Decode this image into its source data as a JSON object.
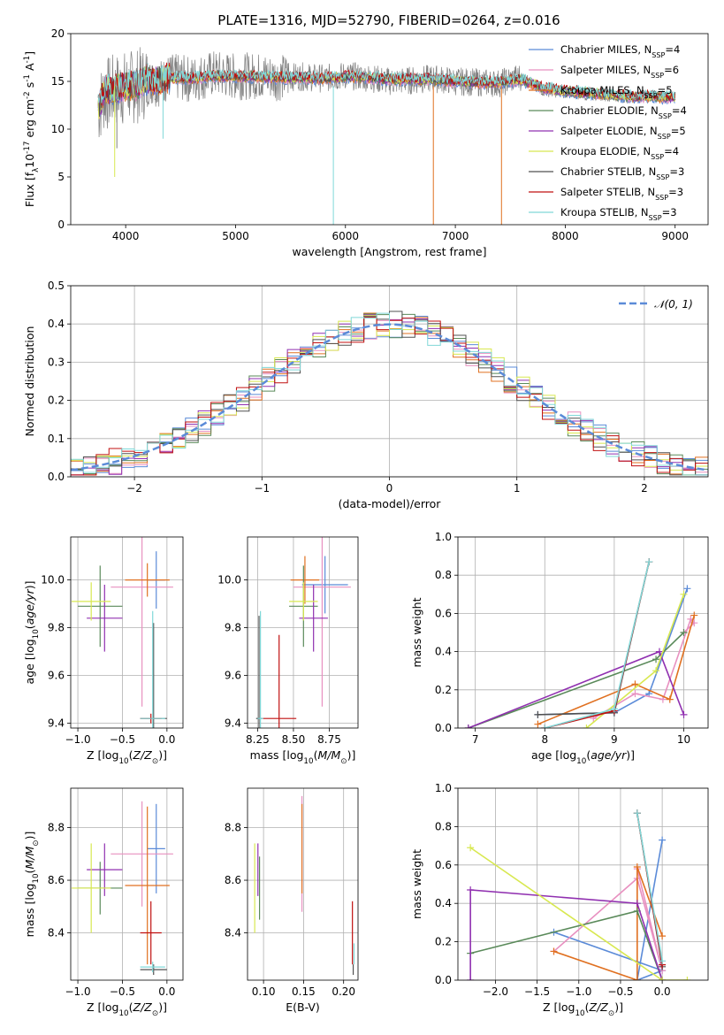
{
  "figure": {
    "title": "PLATE=1316, MJD=52790, FIBERID=0264, z=0.016"
  },
  "models": [
    {
      "name": "Chabrier MILES, N$_{SSP}$=4",
      "color": "#5b8bd8"
    },
    {
      "name": "Salpeter MILES, N$_{SSP}$=6",
      "color": "#e890c0"
    },
    {
      "name": "Kroupa MILES, N$_{SSP}$=5",
      "color": "#e07020"
    },
    {
      "name": "Chabrier ELODIE, N$_{SSP}$=4",
      "color": "#5a8a5a"
    },
    {
      "name": "Salpeter ELODIE, N$_{SSP}$=5",
      "color": "#9030b0"
    },
    {
      "name": "Kroupa ELODIE, N$_{SSP}$=4",
      "color": "#d8e850"
    },
    {
      "name": "Chabrier STELIB, N$_{SSP}$=3",
      "color": "#505050"
    },
    {
      "name": "Salpeter STELIB, N$_{SSP}$=3",
      "color": "#c01010"
    },
    {
      "name": "Kroupa STELIB, N$_{SSP}$=3",
      "color": "#80d8d8"
    }
  ],
  "chart_data": [
    {
      "id": "spectrum",
      "type": "line",
      "xlabel": "wavelength [Angstrom, rest frame]",
      "ylabel": "Flux [f$_\\lambda$10$^{-17}$ erg cm$^{-2}$ s$^{-1}$ A$^{-1}$]",
      "xlim": [
        3500,
        9300
      ],
      "ylim": [
        0,
        20
      ],
      "xticks": [
        4000,
        5000,
        6000,
        7000,
        8000,
        9000
      ],
      "yticks": [
        0,
        5,
        10,
        15,
        20
      ],
      "data_color": "#808080",
      "data": {
        "x": [
          3750,
          3800,
          3900,
          4000,
          4100,
          4200,
          4300,
          4400,
          4600,
          4800,
          5000,
          5200,
          5400,
          5600,
          5800,
          6000,
          6200,
          6400,
          6600,
          6800,
          7000,
          7200,
          7400,
          7600,
          7800,
          8000,
          8200,
          8400,
          8600,
          8800,
          9000
        ],
        "y": [
          12,
          13.5,
          14.0,
          14.3,
          14.5,
          15.0,
          14.8,
          15.5,
          15.2,
          15.8,
          15.5,
          15.6,
          15.4,
          15.5,
          15.3,
          15.6,
          15.4,
          15.0,
          15.1,
          15.3,
          15.0,
          14.9,
          14.8,
          15.5,
          14.0,
          13.8,
          13.6,
          13.5,
          13.3,
          13.4,
          13.3
        ]
      },
      "model_lines": {
        "x": [
          3750,
          3800,
          3900,
          4000,
          4100,
          4200,
          4300,
          4400,
          4600,
          4800,
          5000,
          5200,
          5400,
          5600,
          5800,
          6000,
          6200,
          6400,
          6600,
          6800,
          7000,
          7200,
          7400,
          7600,
          7800,
          8000,
          8200,
          8400,
          8600,
          8800,
          9000
        ],
        "y": [
          12,
          14.0,
          14.2,
          14.5,
          14.6,
          15.2,
          15.0,
          15.4,
          15.3,
          15.6,
          15.5,
          15.5,
          15.4,
          15.4,
          15.3,
          15.5,
          15.4,
          15.2,
          15.2,
          15.2,
          15.0,
          14.9,
          14.9,
          15.2,
          14.3,
          14.0,
          13.8,
          13.6,
          13.4,
          13.4,
          13.3
        ]
      }
    },
    {
      "id": "residuals",
      "type": "histogram",
      "xlabel": "(data-model)/error",
      "ylabel": "Normed distribution",
      "xlim": [
        -2.5,
        2.5
      ],
      "ylim": [
        0,
        0.5
      ],
      "xticks": [
        -2,
        -1,
        0,
        1,
        2
      ],
      "yticks": [
        0.0,
        0.1,
        0.2,
        0.3,
        0.4,
        0.5
      ],
      "bin_width": 0.1,
      "normal_curve": {
        "label": "$\\mathcal{N}(0, 1)$",
        "mu": 0,
        "sigma": 1,
        "color": "#5b8bd8"
      }
    },
    {
      "id": "Z-age",
      "type": "errorbar",
      "xlabel": "Z [log$_{10}$($Z/Z_\\odot$)]",
      "ylabel": "age  [log$_{10}$($age/yr$)]",
      "xlim": [
        -1.08,
        0.18
      ],
      "ylim": [
        9.38,
        10.18
      ],
      "xticks": [
        -1.0,
        -0.5,
        0.0
      ],
      "yticks": [
        9.4,
        9.6,
        9.8,
        10.0
      ],
      "points": [
        {
          "m": 0,
          "x": -0.12,
          "y": 10.0,
          "xe": 0.1,
          "ye": 0.12
        },
        {
          "m": 1,
          "x": -0.28,
          "y": 9.97,
          "xe": 0.35,
          "ye": 0.5
        },
        {
          "m": 2,
          "x": -0.22,
          "y": 10.0,
          "xe": 0.25,
          "ye": 0.07
        },
        {
          "m": 3,
          "x": -0.75,
          "y": 9.89,
          "xe": 0.25,
          "ye": 0.17
        },
        {
          "m": 4,
          "x": -0.7,
          "y": 9.84,
          "xe": 0.2,
          "ye": 0.14
        },
        {
          "m": 5,
          "x": -0.85,
          "y": 9.91,
          "xe": 0.22,
          "ye": 0.08
        },
        {
          "m": 6,
          "x": -0.15,
          "y": 9.42,
          "xe": 0.15,
          "ye": 0.4
        },
        {
          "m": 7,
          "x": -0.18,
          "y": 9.42,
          "xe": 0.12,
          "ye": 0.02
        },
        {
          "m": 8,
          "x": -0.16,
          "y": 9.42,
          "xe": 0.14,
          "ye": 0.45
        }
      ]
    },
    {
      "id": "mass-age",
      "type": "errorbar",
      "xlabel": "mass [log$_{10}$($M/M_\\odot$)]",
      "ylabel": "",
      "xlim": [
        8.18,
        8.95
      ],
      "ylim": [
        9.38,
        10.18
      ],
      "xticks": [
        8.25,
        8.5,
        8.75
      ],
      "yticks": [
        9.4,
        9.6,
        9.8,
        10.0
      ],
      "points": [
        {
          "m": 0,
          "x": 8.72,
          "y": 9.98,
          "xe": 0.16,
          "ye": 0.12
        },
        {
          "m": 1,
          "x": 8.7,
          "y": 9.97,
          "xe": 0.2,
          "ye": 0.5
        },
        {
          "m": 2,
          "x": 8.58,
          "y": 10.0,
          "xe": 0.1,
          "ye": 0.1
        },
        {
          "m": 3,
          "x": 8.57,
          "y": 9.89,
          "xe": 0.1,
          "ye": 0.17
        },
        {
          "m": 4,
          "x": 8.64,
          "y": 9.84,
          "xe": 0.1,
          "ye": 0.14
        },
        {
          "m": 5,
          "x": 8.57,
          "y": 9.91,
          "xe": 0.1,
          "ye": 0.08
        },
        {
          "m": 6,
          "x": 8.26,
          "y": 9.42,
          "xe": 0.02,
          "ye": 0.43
        },
        {
          "m": 7,
          "x": 8.4,
          "y": 9.42,
          "xe": 0.12,
          "ye": 0.35
        },
        {
          "m": 8,
          "x": 8.27,
          "y": 9.42,
          "xe": 0.02,
          "ye": 0.45
        }
      ]
    },
    {
      "id": "age-weight",
      "type": "line",
      "xlabel": "age  [log$_{10}$($age/yr$)]",
      "ylabel": "mass weight",
      "xlim": [
        6.75,
        10.35
      ],
      "ylim": [
        0,
        1.0
      ],
      "xticks": [
        7,
        8,
        9,
        10
      ],
      "yticks": [
        0.0,
        0.2,
        0.4,
        0.6,
        0.8,
        1.0
      ],
      "series": [
        {
          "m": 0,
          "x": [
            7.9,
            9.0,
            9.5,
            10.05
          ],
          "y": [
            0.07,
            0.08,
            0.18,
            0.73
          ]
        },
        {
          "m": 1,
          "x": [
            8.7,
            9.3,
            9.7,
            10.1,
            10.15,
            10.0
          ],
          "y": [
            0.05,
            0.18,
            0.15,
            0.57,
            0.55,
            0.5
          ]
        },
        {
          "m": 2,
          "x": [
            7.9,
            9.3,
            9.8,
            10.15
          ],
          "y": [
            0.02,
            0.23,
            0.15,
            0.59
          ]
        },
        {
          "m": 3,
          "x": [
            6.9,
            9.6,
            10.0
          ],
          "y": [
            0.0,
            0.36,
            0.5
          ]
        },
        {
          "m": 4,
          "x": [
            6.9,
            9.65,
            10.0
          ],
          "y": [
            0.0,
            0.4,
            0.07
          ]
        },
        {
          "m": 5,
          "x": [
            8.6,
            9.6,
            10.0
          ],
          "y": [
            0.0,
            0.3,
            0.7
          ]
        },
        {
          "m": 6,
          "x": [
            7.9,
            9.0,
            9.5
          ],
          "y": [
            0.07,
            0.08,
            0.87
          ]
        },
        {
          "m": 7,
          "x": [
            8.0,
            9.0,
            9.5
          ],
          "y": [
            0.0,
            0.09,
            0.87
          ]
        },
        {
          "m": 8,
          "x": [
            8.0,
            9.0,
            9.5
          ],
          "y": [
            0.0,
            0.1,
            0.87
          ]
        }
      ]
    },
    {
      "id": "Z-mass",
      "type": "errorbar",
      "xlabel": "Z [log$_{10}$($Z/Z_\\odot$)]",
      "ylabel": "mass [log$_{10}$($M/M_\\odot$)]",
      "xlim": [
        -1.08,
        0.18
      ],
      "ylim": [
        8.22,
        8.95
      ],
      "xticks": [
        -1.0,
        -0.5,
        0.0
      ],
      "yticks": [
        8.4,
        8.6,
        8.8
      ],
      "points": [
        {
          "m": 0,
          "x": -0.12,
          "y": 8.72,
          "xe": 0.1,
          "ye": 0.17
        },
        {
          "m": 1,
          "x": -0.28,
          "y": 8.7,
          "xe": 0.35,
          "ye": 0.2
        },
        {
          "m": 2,
          "x": -0.22,
          "y": 8.58,
          "xe": 0.25,
          "ye": 0.3
        },
        {
          "m": 3,
          "x": -0.75,
          "y": 8.57,
          "xe": 0.25,
          "ye": 0.1
        },
        {
          "m": 4,
          "x": -0.7,
          "y": 8.64,
          "xe": 0.2,
          "ye": 0.1
        },
        {
          "m": 5,
          "x": -0.85,
          "y": 8.57,
          "xe": 0.22,
          "ye": 0.17
        },
        {
          "m": 6,
          "x": -0.15,
          "y": 8.26,
          "xe": 0.15,
          "ye": 0.02
        },
        {
          "m": 7,
          "x": -0.18,
          "y": 8.4,
          "xe": 0.12,
          "ye": 0.12
        },
        {
          "m": 8,
          "x": -0.16,
          "y": 8.27,
          "xe": 0.14,
          "ye": 0.02
        }
      ]
    },
    {
      "id": "ebv-mass",
      "type": "errorbar",
      "xlabel": "E(B-V)",
      "ylabel": "",
      "xlim": [
        0.08,
        0.218
      ],
      "ylim": [
        8.22,
        8.95
      ],
      "xticks": [
        0.1,
        0.15,
        0.2
      ],
      "yticks": [
        8.4,
        8.6,
        8.8
      ],
      "points": [
        {
          "m": 1,
          "x": 0.148,
          "y": 8.7,
          "xe": 0.0,
          "ye": 0.22
        },
        {
          "m": 2,
          "x": 0.148,
          "y": 8.72,
          "xe": 0.0,
          "ye": 0.17
        },
        {
          "m": 3,
          "x": 0.095,
          "y": 8.57,
          "xe": 0.0,
          "ye": 0.12
        },
        {
          "m": 4,
          "x": 0.093,
          "y": 8.64,
          "xe": 0.0,
          "ye": 0.1
        },
        {
          "m": 5,
          "x": 0.089,
          "y": 8.57,
          "xe": 0.0,
          "ye": 0.17
        },
        {
          "m": 6,
          "x": 0.212,
          "y": 8.26,
          "xe": 0.0,
          "ye": 0.02
        },
        {
          "m": 7,
          "x": 0.211,
          "y": 8.4,
          "xe": 0.0,
          "ye": 0.12
        },
        {
          "m": 8,
          "x": 0.213,
          "y": 8.32,
          "xe": 0.0,
          "ye": 0.04
        }
      ]
    },
    {
      "id": "Z-weight",
      "type": "line",
      "xlabel": "Z [log$_{10}$($Z/Z_\\odot$)]",
      "ylabel": "mass weight",
      "xlim": [
        -2.45,
        0.55
      ],
      "ylim": [
        0,
        1.0
      ],
      "xticks": [
        -2.0,
        -1.5,
        -1.0,
        -0.5,
        0.0
      ],
      "yticks": [
        0.0,
        0.2,
        0.4,
        0.6,
        0.8,
        1.0
      ],
      "series": [
        {
          "m": 0,
          "x": [
            -1.3,
            0.0,
            -0.3,
            0.0
          ],
          "y": [
            0.25,
            0.05,
            0.0,
            0.73
          ]
        },
        {
          "m": 1,
          "x": [
            -1.3,
            -0.3,
            0.0,
            -0.3
          ],
          "y": [
            0.15,
            0.53,
            0.05,
            0.58
          ]
        },
        {
          "m": 2,
          "x": [
            -1.3,
            -0.3,
            -0.3,
            0.0
          ],
          "y": [
            0.15,
            0.0,
            0.59,
            0.23
          ]
        },
        {
          "m": 3,
          "x": [
            -2.3,
            -0.3,
            0.0
          ],
          "y": [
            0.14,
            0.36,
            0.0
          ]
        },
        {
          "m": 4,
          "x": [
            -2.3,
            -2.3,
            -0.3,
            0.0
          ],
          "y": [
            0.0,
            0.47,
            0.4,
            0.0
          ]
        },
        {
          "m": 5,
          "x": [
            -2.3,
            0.0,
            0.3
          ],
          "y": [
            0.69,
            0.0,
            0.0
          ]
        },
        {
          "m": 6,
          "x": [
            -0.3,
            0.0
          ],
          "y": [
            0.87,
            0.07
          ]
        },
        {
          "m": 7,
          "x": [
            -0.3,
            0.0
          ],
          "y": [
            0.87,
            0.08
          ]
        },
        {
          "m": 8,
          "x": [
            -0.3,
            0.0
          ],
          "y": [
            0.87,
            0.1
          ]
        }
      ]
    }
  ]
}
